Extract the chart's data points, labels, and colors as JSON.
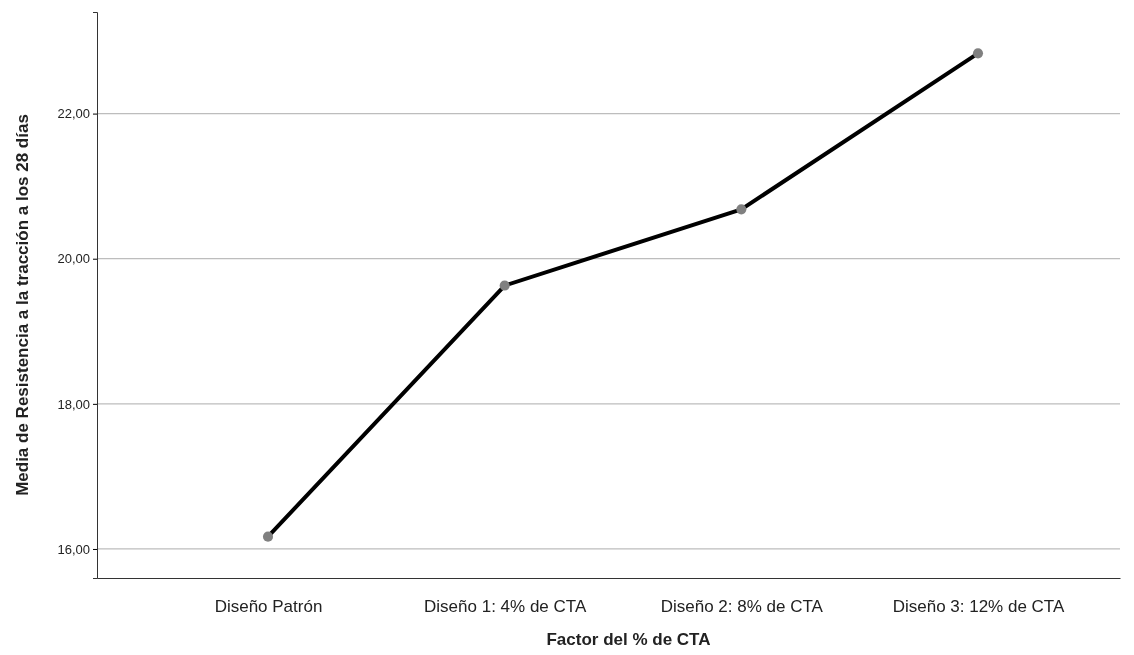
{
  "chart_data": {
    "type": "line",
    "xlabel": "Factor del % de CTA",
    "ylabel": "Media de Resistencia a la tracción a los 28 días",
    "categories": [
      "Diseño Patrón",
      "Diseño 1: 4% de CTA",
      "Diseño 2: 8% de CTA",
      "Diseño 3: 12% de CTA"
    ],
    "series": [
      {
        "color": "#000000",
        "values": [
          16.17,
          19.63,
          20.68,
          22.83
        ]
      }
    ],
    "ylim": [
      15.6,
      23.4
    ],
    "yticks": [
      {
        "value": 16,
        "label": "16,00"
      },
      {
        "value": 18,
        "label": "18,00"
      },
      {
        "value": 20,
        "label": "20,00"
      },
      {
        "value": 22,
        "label": "22,00"
      }
    ],
    "grid": "y",
    "marker": "circle",
    "line_style": "solid"
  }
}
